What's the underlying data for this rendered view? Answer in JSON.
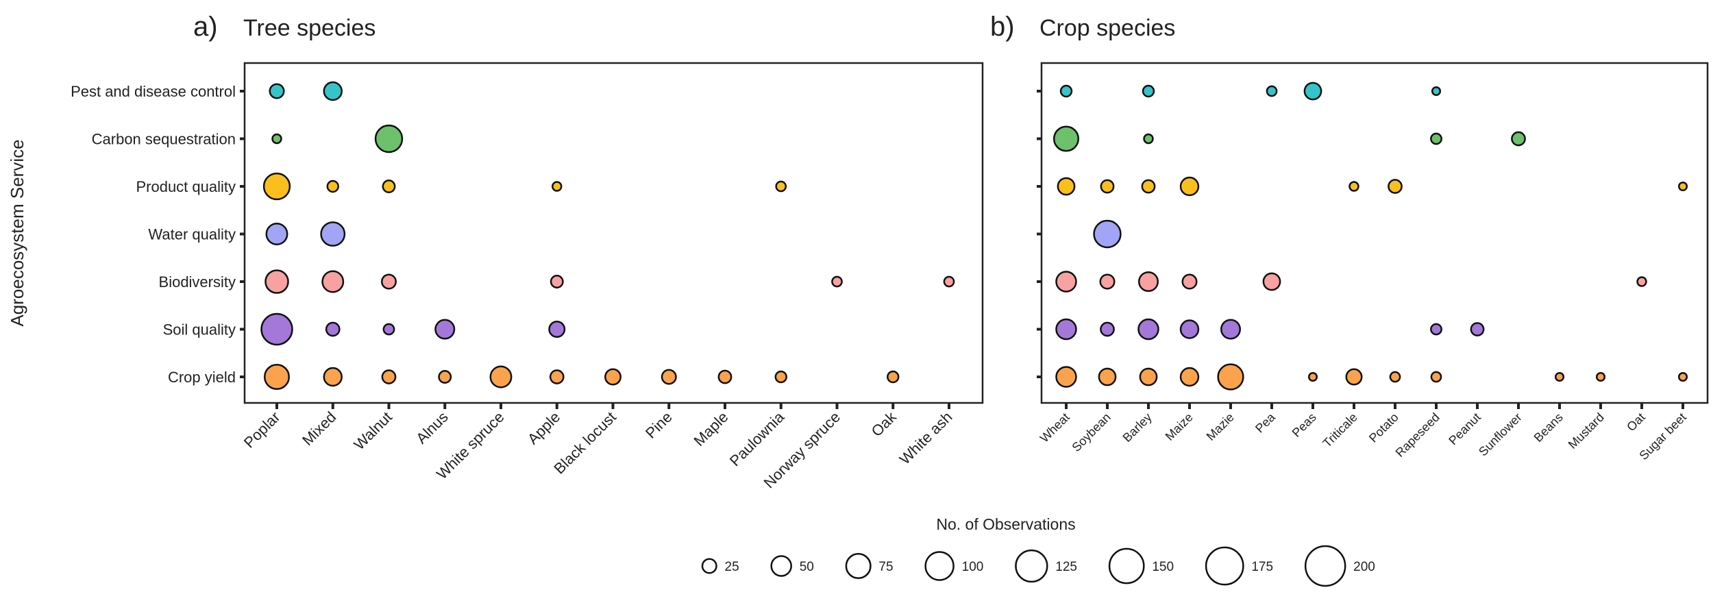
{
  "y_axis_title": "Agroecosystem Service",
  "services": [
    "Pest and disease control",
    "Carbon sequestration",
    "Product quality",
    "Water quality",
    "Biodiversity",
    "Soil quality",
    "Crop yield"
  ],
  "colors": {
    "Pest and disease control": "#35c4c9",
    "Carbon sequestration": "#6cc16a",
    "Product quality": "#fbbf1d",
    "Water quality": "#a2a5f5",
    "Biodiversity": "#f8a1a1",
    "Soil quality": "#a378d8",
    "Crop yield": "#fba34c"
  },
  "chart_data": [
    {
      "type": "scatter",
      "panel_letter": "a)",
      "title": "Tree species",
      "categories": [
        "Poplar",
        "Mixed",
        "Walnut",
        "Alnus",
        "White spruce",
        "Apple",
        "Black locust",
        "Pine",
        "Maple",
        "Paulownia",
        "Norway spruce",
        "Oak",
        "White ash"
      ],
      "points": [
        {
          "x": "Poplar",
          "y": "Pest and disease control",
          "n": 25
        },
        {
          "x": "Mixed",
          "y": "Pest and disease control",
          "n": 40
        },
        {
          "x": "Poplar",
          "y": "Carbon sequestration",
          "n": 10
        },
        {
          "x": "Walnut",
          "y": "Carbon sequestration",
          "n": 90
        },
        {
          "x": "Poplar",
          "y": "Product quality",
          "n": 85
        },
        {
          "x": "Mixed",
          "y": "Product quality",
          "n": 15
        },
        {
          "x": "Walnut",
          "y": "Product quality",
          "n": 18
        },
        {
          "x": "Apple",
          "y": "Product quality",
          "n": 10
        },
        {
          "x": "Paulownia",
          "y": "Product quality",
          "n": 12
        },
        {
          "x": "Poplar",
          "y": "Water quality",
          "n": 55
        },
        {
          "x": "Mixed",
          "y": "Water quality",
          "n": 70
        },
        {
          "x": "Poplar",
          "y": "Biodiversity",
          "n": 65
        },
        {
          "x": "Mixed",
          "y": "Biodiversity",
          "n": 55
        },
        {
          "x": "Walnut",
          "y": "Biodiversity",
          "n": 25
        },
        {
          "x": "Apple",
          "y": "Biodiversity",
          "n": 18
        },
        {
          "x": "Norway spruce",
          "y": "Biodiversity",
          "n": 12
        },
        {
          "x": "White ash",
          "y": "Biodiversity",
          "n": 12
        },
        {
          "x": "Poplar",
          "y": "Soil quality",
          "n": 120
        },
        {
          "x": "Mixed",
          "y": "Soil quality",
          "n": 22
        },
        {
          "x": "Walnut",
          "y": "Soil quality",
          "n": 14
        },
        {
          "x": "Alnus",
          "y": "Soil quality",
          "n": 45
        },
        {
          "x": "Apple",
          "y": "Soil quality",
          "n": 30
        },
        {
          "x": "Poplar",
          "y": "Crop yield",
          "n": 75
        },
        {
          "x": "Mixed",
          "y": "Crop yield",
          "n": 40
        },
        {
          "x": "Walnut",
          "y": "Crop yield",
          "n": 22
        },
        {
          "x": "Alnus",
          "y": "Crop yield",
          "n": 18
        },
        {
          "x": "White spruce",
          "y": "Crop yield",
          "n": 55
        },
        {
          "x": "Apple",
          "y": "Crop yield",
          "n": 22
        },
        {
          "x": "Black locust",
          "y": "Crop yield",
          "n": 30
        },
        {
          "x": "Pine",
          "y": "Crop yield",
          "n": 25
        },
        {
          "x": "Maple",
          "y": "Crop yield",
          "n": 20
        },
        {
          "x": "Paulownia",
          "y": "Crop yield",
          "n": 15
        },
        {
          "x": "Oak",
          "y": "Crop yield",
          "n": 15
        }
      ]
    },
    {
      "type": "scatter",
      "panel_letter": "b)",
      "title": "Crop species",
      "categories": [
        "Wheat",
        "Soybean",
        "Barley",
        "Maize",
        "Mazie",
        "Pea",
        "Peas",
        "Triticale",
        "Potato",
        "Rapeseed",
        "Peanut",
        "Sunflower",
        "Beans",
        "Mustard",
        "Oat",
        "Sugar beet"
      ],
      "points": [
        {
          "x": "Wheat",
          "y": "Pest and disease control",
          "n": 15
        },
        {
          "x": "Barley",
          "y": "Pest and disease control",
          "n": 15
        },
        {
          "x": "Pea",
          "y": "Pest and disease control",
          "n": 12
        },
        {
          "x": "Peas",
          "y": "Pest and disease control",
          "n": 35
        },
        {
          "x": "Rapeseed",
          "y": "Pest and disease control",
          "n": 8
        },
        {
          "x": "Wheat",
          "y": "Carbon sequestration",
          "n": 75
        },
        {
          "x": "Barley",
          "y": "Carbon sequestration",
          "n": 10
        },
        {
          "x": "Rapeseed",
          "y": "Carbon sequestration",
          "n": 14
        },
        {
          "x": "Sunflower",
          "y": "Carbon sequestration",
          "n": 22
        },
        {
          "x": "Wheat",
          "y": "Product quality",
          "n": 35
        },
        {
          "x": "Soybean",
          "y": "Product quality",
          "n": 20
        },
        {
          "x": "Barley",
          "y": "Product quality",
          "n": 20
        },
        {
          "x": "Maize",
          "y": "Product quality",
          "n": 40
        },
        {
          "x": "Triticale",
          "y": "Product quality",
          "n": 10
        },
        {
          "x": "Potato",
          "y": "Product quality",
          "n": 22
        },
        {
          "x": "Sugar beet",
          "y": "Product quality",
          "n": 8
        },
        {
          "x": "Soybean",
          "y": "Water quality",
          "n": 90
        },
        {
          "x": "Wheat",
          "y": "Biodiversity",
          "n": 50
        },
        {
          "x": "Soybean",
          "y": "Biodiversity",
          "n": 25
        },
        {
          "x": "Barley",
          "y": "Biodiversity",
          "n": 45
        },
        {
          "x": "Maize",
          "y": "Biodiversity",
          "n": 25
        },
        {
          "x": "Pea",
          "y": "Biodiversity",
          "n": 35
        },
        {
          "x": "Oat",
          "y": "Biodiversity",
          "n": 10
        },
        {
          "x": "Wheat",
          "y": "Soil quality",
          "n": 50
        },
        {
          "x": "Soybean",
          "y": "Soil quality",
          "n": 22
        },
        {
          "x": "Barley",
          "y": "Soil quality",
          "n": 50
        },
        {
          "x": "Maize",
          "y": "Soil quality",
          "n": 40
        },
        {
          "x": "Mazie",
          "y": "Soil quality",
          "n": 45
        },
        {
          "x": "Rapeseed",
          "y": "Soil quality",
          "n": 14
        },
        {
          "x": "Peanut",
          "y": "Soil quality",
          "n": 20
        },
        {
          "x": "Wheat",
          "y": "Crop yield",
          "n": 50
        },
        {
          "x": "Soybean",
          "y": "Crop yield",
          "n": 35
        },
        {
          "x": "Barley",
          "y": "Crop yield",
          "n": 35
        },
        {
          "x": "Maize",
          "y": "Crop yield",
          "n": 40
        },
        {
          "x": "Mazie",
          "y": "Crop yield",
          "n": 80
        },
        {
          "x": "Peas",
          "y": "Crop yield",
          "n": 8
        },
        {
          "x": "Triticale",
          "y": "Crop yield",
          "n": 30
        },
        {
          "x": "Potato",
          "y": "Crop yield",
          "n": 12
        },
        {
          "x": "Rapeseed",
          "y": "Crop yield",
          "n": 12
        },
        {
          "x": "Beans",
          "y": "Crop yield",
          "n": 8
        },
        {
          "x": "Mustard",
          "y": "Crop yield",
          "n": 8
        },
        {
          "x": "Sugar beet",
          "y": "Crop yield",
          "n": 8
        }
      ]
    }
  ],
  "legend": {
    "title": "No. of Observations",
    "sizes": [
      25,
      50,
      75,
      100,
      125,
      150,
      175,
      200
    ],
    "labels": [
      "25",
      "50",
      "75",
      "100",
      "125",
      "150",
      "175",
      "200"
    ]
  }
}
